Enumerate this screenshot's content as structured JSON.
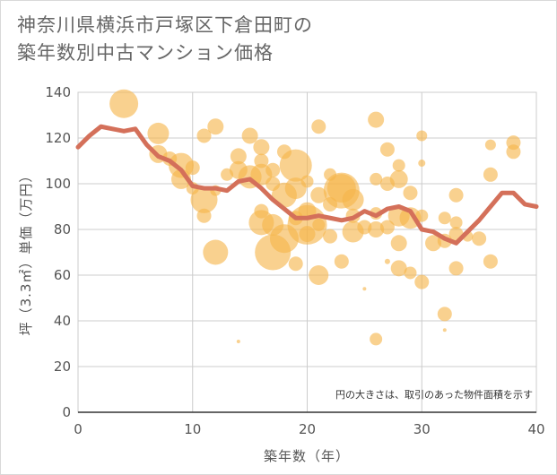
{
  "chart_data": {
    "type": "scatter",
    "title_lines": [
      "神奈川県横浜市戸塚区下倉田町の",
      "築年数別中古マンション価格"
    ],
    "xlabel": "築年数（年）",
    "ylabel": "坪（3.3㎡）単価（万円）",
    "xlim": [
      0,
      40
    ],
    "ylim": [
      0,
      140
    ],
    "xticks": [
      0,
      10,
      20,
      30,
      40
    ],
    "yticks": [
      0,
      20,
      40,
      60,
      80,
      100,
      120,
      140
    ],
    "grid": true,
    "note": "円の大きさは、取引のあった物件面積を示す",
    "bubble_color": "#f5b54a",
    "line_color": "#d4705a",
    "bubbles": [
      {
        "x": 4,
        "y": 135,
        "s": 16
      },
      {
        "x": 7,
        "y": 122,
        "s": 12
      },
      {
        "x": 7,
        "y": 113,
        "s": 10
      },
      {
        "x": 8,
        "y": 111,
        "s": 8
      },
      {
        "x": 9,
        "y": 108,
        "s": 14
      },
      {
        "x": 9,
        "y": 102,
        "s": 11
      },
      {
        "x": 10,
        "y": 107,
        "s": 8
      },
      {
        "x": 10,
        "y": 98,
        "s": 7
      },
      {
        "x": 11,
        "y": 121,
        "s": 8
      },
      {
        "x": 11,
        "y": 93,
        "s": 15
      },
      {
        "x": 11,
        "y": 86,
        "s": 8
      },
      {
        "x": 12,
        "y": 125,
        "s": 9
      },
      {
        "x": 12,
        "y": 70,
        "s": 14
      },
      {
        "x": 12,
        "y": 97,
        "s": 6
      },
      {
        "x": 13,
        "y": 104,
        "s": 7
      },
      {
        "x": 14,
        "y": 112,
        "s": 9
      },
      {
        "x": 14,
        "y": 106,
        "s": 10
      },
      {
        "x": 14,
        "y": 31,
        "s": 2
      },
      {
        "x": 15,
        "y": 121,
        "s": 9
      },
      {
        "x": 15,
        "y": 103,
        "s": 13
      },
      {
        "x": 16,
        "y": 116,
        "s": 9
      },
      {
        "x": 16,
        "y": 110,
        "s": 8
      },
      {
        "x": 16,
        "y": 104,
        "s": 12
      },
      {
        "x": 16,
        "y": 88,
        "s": 8
      },
      {
        "x": 16,
        "y": 83,
        "s": 14
      },
      {
        "x": 17,
        "y": 106,
        "s": 8
      },
      {
        "x": 17,
        "y": 100,
        "s": 8
      },
      {
        "x": 17,
        "y": 82,
        "s": 12
      },
      {
        "x": 17,
        "y": 70,
        "s": 20
      },
      {
        "x": 18,
        "y": 114,
        "s": 8
      },
      {
        "x": 18,
        "y": 95,
        "s": 14
      },
      {
        "x": 18,
        "y": 76,
        "s": 16
      },
      {
        "x": 19,
        "y": 108,
        "s": 18
      },
      {
        "x": 19,
        "y": 98,
        "s": 12
      },
      {
        "x": 19,
        "y": 85,
        "s": 8
      },
      {
        "x": 19,
        "y": 65,
        "s": 8
      },
      {
        "x": 20,
        "y": 101,
        "s": 7
      },
      {
        "x": 20,
        "y": 88,
        "s": 10
      },
      {
        "x": 20,
        "y": 82,
        "s": 22
      },
      {
        "x": 20,
        "y": 78,
        "s": 9
      },
      {
        "x": 21,
        "y": 125,
        "s": 8
      },
      {
        "x": 21,
        "y": 95,
        "s": 9
      },
      {
        "x": 21,
        "y": 82,
        "s": 7
      },
      {
        "x": 21,
        "y": 60,
        "s": 11
      },
      {
        "x": 22,
        "y": 104,
        "s": 7
      },
      {
        "x": 22,
        "y": 91,
        "s": 8
      },
      {
        "x": 22,
        "y": 77,
        "s": 8
      },
      {
        "x": 23,
        "y": 98,
        "s": 16
      },
      {
        "x": 23,
        "y": 97,
        "s": 20
      },
      {
        "x": 23,
        "y": 66,
        "s": 8
      },
      {
        "x": 24,
        "y": 93,
        "s": 12
      },
      {
        "x": 24,
        "y": 79,
        "s": 12
      },
      {
        "x": 24,
        "y": 86,
        "s": 8
      },
      {
        "x": 25,
        "y": 81,
        "s": 8
      },
      {
        "x": 25,
        "y": 54,
        "s": 2
      },
      {
        "x": 26,
        "y": 128,
        "s": 9
      },
      {
        "x": 26,
        "y": 102,
        "s": 7
      },
      {
        "x": 26,
        "y": 87,
        "s": 7
      },
      {
        "x": 26,
        "y": 80,
        "s": 9
      },
      {
        "x": 26,
        "y": 32,
        "s": 7
      },
      {
        "x": 27,
        "y": 115,
        "s": 8
      },
      {
        "x": 27,
        "y": 100,
        "s": 8
      },
      {
        "x": 27,
        "y": 81,
        "s": 8
      },
      {
        "x": 27,
        "y": 66,
        "s": 3
      },
      {
        "x": 28,
        "y": 108,
        "s": 7
      },
      {
        "x": 28,
        "y": 102,
        "s": 10
      },
      {
        "x": 28,
        "y": 86,
        "s": 12
      },
      {
        "x": 28,
        "y": 74,
        "s": 9
      },
      {
        "x": 28,
        "y": 63,
        "s": 9
      },
      {
        "x": 29,
        "y": 96,
        "s": 8
      },
      {
        "x": 29,
        "y": 85,
        "s": 12
      },
      {
        "x": 29,
        "y": 61,
        "s": 7
      },
      {
        "x": 30,
        "y": 121,
        "s": 6
      },
      {
        "x": 30,
        "y": 109,
        "s": 4
      },
      {
        "x": 30,
        "y": 86,
        "s": 7
      },
      {
        "x": 30,
        "y": 57,
        "s": 8
      },
      {
        "x": 31,
        "y": 74,
        "s": 9
      },
      {
        "x": 32,
        "y": 85,
        "s": 7
      },
      {
        "x": 32,
        "y": 75,
        "s": 8
      },
      {
        "x": 32,
        "y": 43,
        "s": 8
      },
      {
        "x": 32,
        "y": 36,
        "s": 2
      },
      {
        "x": 33,
        "y": 95,
        "s": 8
      },
      {
        "x": 33,
        "y": 83,
        "s": 7
      },
      {
        "x": 33,
        "y": 78,
        "s": 8
      },
      {
        "x": 33,
        "y": 63,
        "s": 8
      },
      {
        "x": 34,
        "y": 77,
        "s": 6
      },
      {
        "x": 35,
        "y": 76,
        "s": 8
      },
      {
        "x": 36,
        "y": 117,
        "s": 6
      },
      {
        "x": 36,
        "y": 104,
        "s": 8
      },
      {
        "x": 36,
        "y": 66,
        "s": 8
      },
      {
        "x": 38,
        "y": 118,
        "s": 8
      },
      {
        "x": 38,
        "y": 114,
        "s": 8
      }
    ],
    "line": {
      "x": [
        0,
        1,
        2,
        3,
        4,
        5,
        6,
        7,
        8,
        9,
        10,
        11,
        12,
        13,
        14,
        15,
        16,
        17,
        18,
        19,
        20,
        21,
        22,
        23,
        24,
        25,
        26,
        27,
        28,
        29,
        30,
        31,
        32,
        33,
        34,
        35,
        36,
        37,
        38,
        39,
        40
      ],
      "y": [
        116,
        121,
        125,
        124,
        123,
        124,
        117,
        112,
        110,
        106,
        99,
        98,
        98,
        97,
        101,
        102,
        98,
        93,
        89,
        85,
        85,
        86,
        85,
        84,
        85,
        88,
        86,
        89,
        90,
        88,
        80,
        79,
        76,
        74,
        79,
        84,
        90,
        96,
        96,
        91,
        90
      ]
    }
  }
}
